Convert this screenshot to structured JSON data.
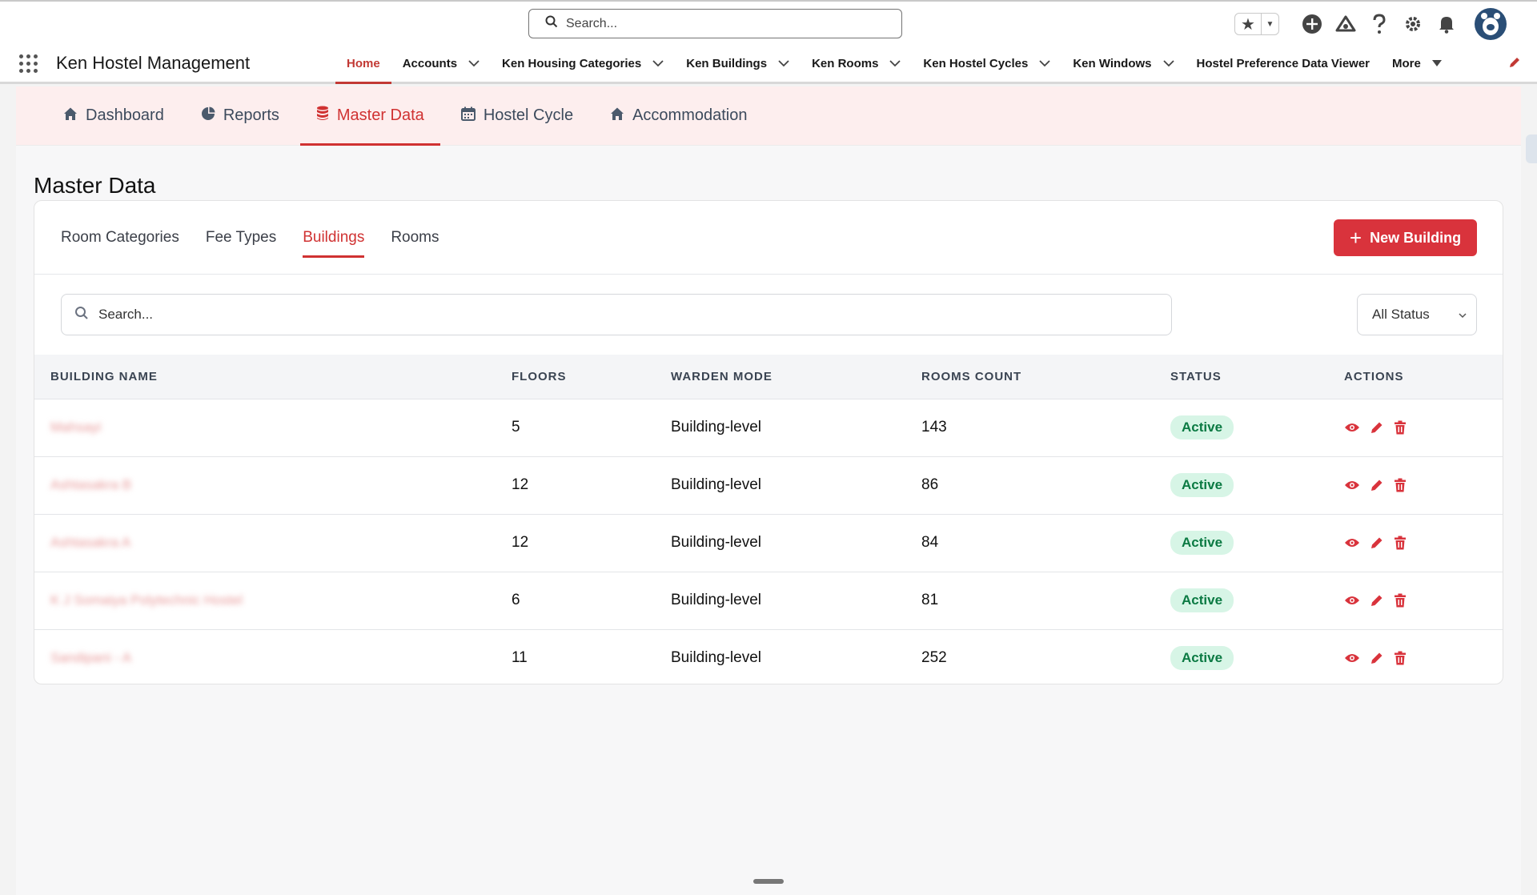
{
  "global_header": {
    "search_placeholder": "Search..."
  },
  "app_nav": {
    "app_name": "Ken Hostel Management",
    "items": [
      {
        "label": "Home",
        "has_menu": false,
        "active": true
      },
      {
        "label": "Accounts",
        "has_menu": true
      },
      {
        "label": "Ken Housing Categories",
        "has_menu": true
      },
      {
        "label": "Ken Buildings",
        "has_menu": true
      },
      {
        "label": "Ken Rooms",
        "has_menu": true
      },
      {
        "label": "Ken Hostel Cycles",
        "has_menu": true
      },
      {
        "label": "Ken Windows",
        "has_menu": true
      },
      {
        "label": "Hostel Preference Data Viewer",
        "has_menu": false
      },
      {
        "label": "More",
        "has_menu": true
      }
    ]
  },
  "sub_tabs": [
    {
      "label": "Dashboard",
      "icon": "home-icon"
    },
    {
      "label": "Reports",
      "icon": "pie-chart-icon"
    },
    {
      "label": "Master Data",
      "icon": "database-icon",
      "active": true
    },
    {
      "label": "Hostel Cycle",
      "icon": "calendar-icon"
    },
    {
      "label": "Accommodation",
      "icon": "home-icon"
    }
  ],
  "page_title": "Master Data",
  "card": {
    "tabs": [
      {
        "label": "Room Categories"
      },
      {
        "label": "Fee Types"
      },
      {
        "label": "Buildings",
        "active": true
      },
      {
        "label": "Rooms"
      }
    ],
    "new_button_label": "New Building",
    "search_placeholder": "Search...",
    "status_filter": "All Status"
  },
  "table": {
    "columns": [
      "BUILDING NAME",
      "FLOORS",
      "WARDEN MODE",
      "ROOMS COUNT",
      "STATUS",
      "ACTIONS"
    ],
    "rows": [
      {
        "name": "Mahsayi",
        "floors": "5",
        "warden_mode": "Building-level",
        "rooms_count": "143",
        "status": "Active"
      },
      {
        "name": "Ashtasakra B",
        "floors": "12",
        "warden_mode": "Building-level",
        "rooms_count": "86",
        "status": "Active"
      },
      {
        "name": "Ashtasakra A",
        "floors": "12",
        "warden_mode": "Building-level",
        "rooms_count": "84",
        "status": "Active"
      },
      {
        "name": "K J Somaiya Polytechnic Hostel",
        "floors": "6",
        "warden_mode": "Building-level",
        "rooms_count": "81",
        "status": "Active"
      },
      {
        "name": "Sandipani - A",
        "floors": "11",
        "warden_mode": "Building-level",
        "rooms_count": "252",
        "status": "Active"
      }
    ]
  },
  "colors": {
    "accent": "#d03232",
    "button": "#d9333c",
    "active_badge_bg": "#d7f5e6",
    "active_badge_text": "#0b7a43",
    "subnav_bg": "#fdeeee"
  }
}
